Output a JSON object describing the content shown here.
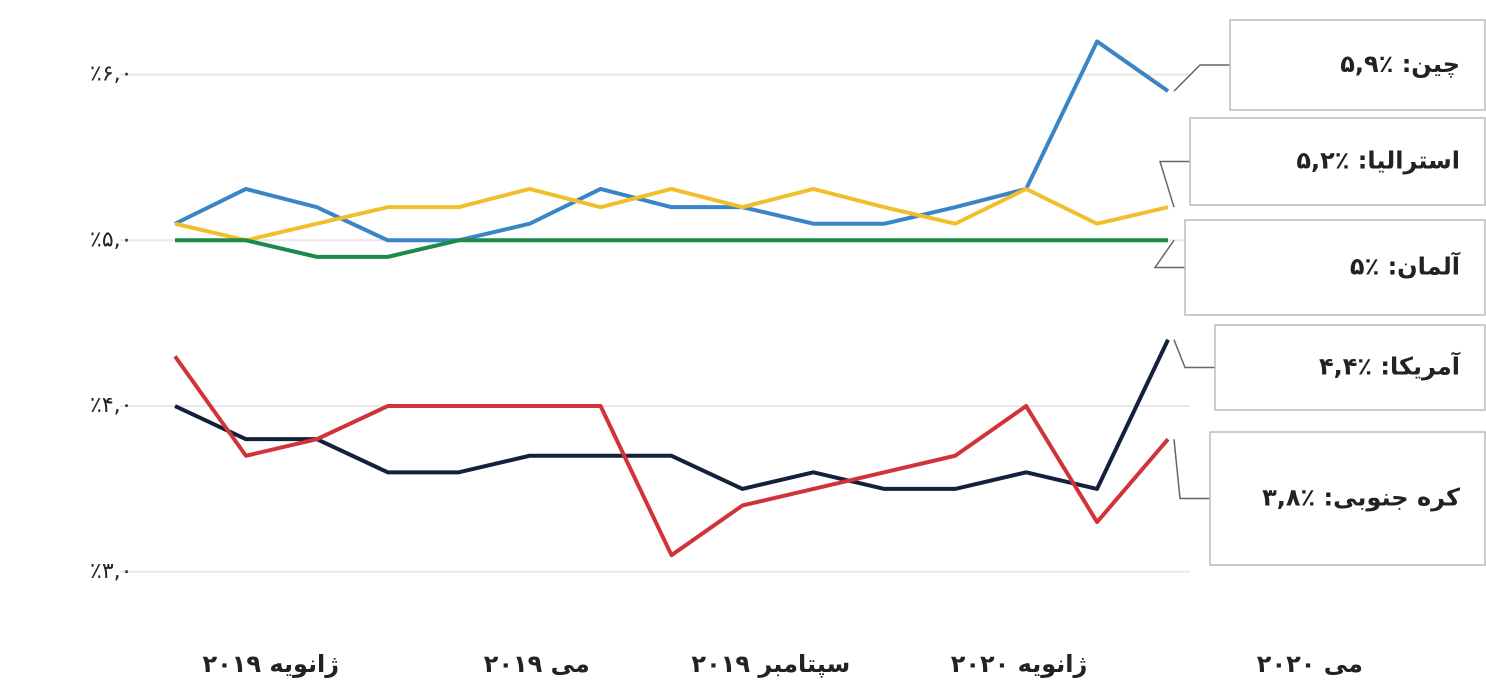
{
  "chart_data": {
    "type": "line",
    "x": [
      0,
      1,
      2,
      3,
      4,
      5,
      6,
      7,
      8,
      9,
      10,
      11,
      12,
      13,
      14
    ],
    "xlim": [
      0,
      14
    ],
    "xticks": [
      {
        "value": 1.35,
        "label": "ژانویه ۲۰۱۹"
      },
      {
        "value": 5.1,
        "label": "می ۲۰۱۹"
      },
      {
        "value": 8.4,
        "label": "سپتامبر ۲۰۱۹"
      },
      {
        "value": 11.9,
        "label": "ژانویه ۲۰۲۰"
      },
      {
        "value": 16,
        "label": "می ۲۰۲۰"
      }
    ],
    "ylim": [
      2.89,
      6.45
    ],
    "yticks": [
      {
        "value": 3,
        "label": "٪۳,۰"
      },
      {
        "value": 4,
        "label": "٪۴,۰"
      },
      {
        "value": 5,
        "label": "٪۵,۰"
      },
      {
        "value": 6,
        "label": "٪۶,۰"
      }
    ],
    "grid": true,
    "series": [
      {
        "name": "چین: ٪۵,۹",
        "color": "#3a85c6",
        "values": [
          5.1,
          5.31,
          5.2,
          5.0,
          5.0,
          5.1,
          5.31,
          5.2,
          5.2,
          5.1,
          5.1,
          5.2,
          5.31,
          6.2,
          5.9
        ]
      },
      {
        "name": "استرالیا: ٪۵,۲",
        "color": "#f0c02c",
        "values": [
          5.1,
          5.0,
          5.1,
          5.2,
          5.2,
          5.31,
          5.2,
          5.31,
          5.2,
          5.31,
          5.2,
          5.1,
          5.31,
          5.1,
          5.2
        ]
      },
      {
        "name": "آلمان: ٪۵",
        "color": "#1e8a4a",
        "values": [
          5.0,
          5.0,
          4.9,
          4.9,
          5.0,
          5.0,
          5.0,
          5.0,
          5.0,
          5.0,
          5.0,
          5.0,
          5.0,
          5.0,
          5.0
        ]
      },
      {
        "name": "آمریکا: ٪۴,۴",
        "color": "#14213d",
        "values": [
          4.0,
          3.8,
          3.8,
          3.6,
          3.6,
          3.7,
          3.7,
          3.7,
          3.5,
          3.6,
          3.5,
          3.5,
          3.6,
          3.5,
          4.4
        ]
      },
      {
        "name": "کره جنوبی: ٪۳,۸",
        "color": "#d0343a",
        "values": [
          4.3,
          3.7,
          3.8,
          4.0,
          4.0,
          4.0,
          4.0,
          3.1,
          3.4,
          3.5,
          3.6,
          3.7,
          4.0,
          3.3,
          3.8
        ]
      }
    ]
  }
}
